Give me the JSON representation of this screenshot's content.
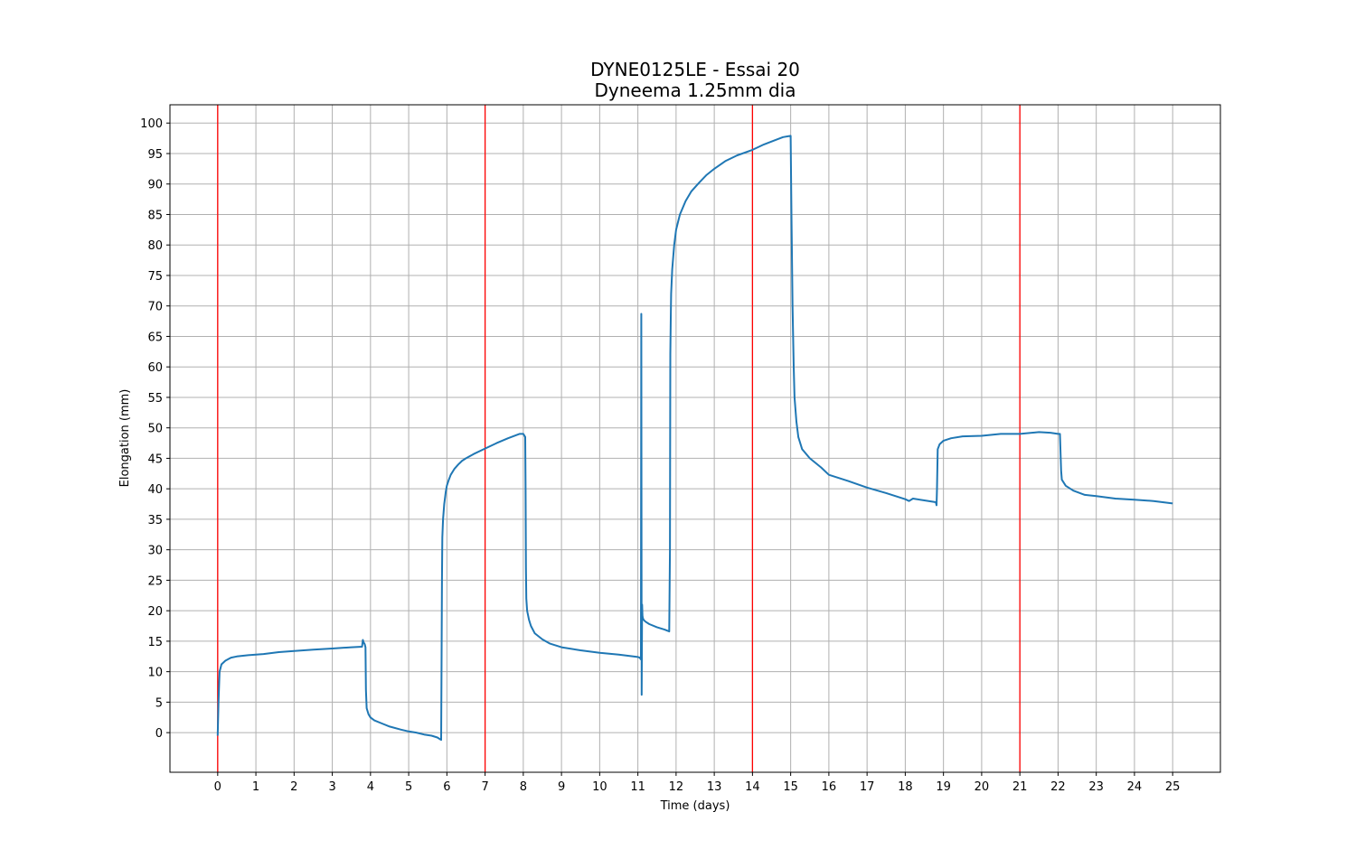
{
  "chart_data": {
    "type": "line",
    "title": "DYNE0125LE - Essai 20",
    "subtitle": "Dyneema 1.25mm dia",
    "xlabel": "Time (days)",
    "ylabel": "Elongation (mm)",
    "xlim": [
      -1.25,
      26.25
    ],
    "ylim": [
      -6.5,
      103
    ],
    "xticks": [
      0,
      1,
      2,
      3,
      4,
      5,
      6,
      7,
      8,
      9,
      10,
      11,
      12,
      13,
      14,
      15,
      16,
      17,
      18,
      19,
      20,
      21,
      22,
      23,
      24,
      25
    ],
    "yticks": [
      0,
      5,
      10,
      15,
      20,
      25,
      30,
      35,
      40,
      45,
      50,
      55,
      60,
      65,
      70,
      75,
      80,
      85,
      90,
      95,
      100
    ],
    "grid": true,
    "vlines": {
      "x": [
        0,
        7,
        14,
        21
      ],
      "color": "#ff0000"
    },
    "series": [
      {
        "name": "Elongation",
        "color": "#1f77b4",
        "x": [
          0,
          0.02,
          0.05,
          0.1,
          0.2,
          0.35,
          0.5,
          0.8,
          1.2,
          1.6,
          2.0,
          2.5,
          3.0,
          3.5,
          3.78,
          3.8,
          3.82,
          3.85,
          3.87,
          3.88,
          3.9,
          3.95,
          4.0,
          4.1,
          4.3,
          4.5,
          4.8,
          5.0,
          5.2,
          5.4,
          5.6,
          5.75,
          5.85,
          5.86,
          5.87,
          5.88,
          5.9,
          5.93,
          5.97,
          6.0,
          6.05,
          6.1,
          6.2,
          6.3,
          6.4,
          6.5,
          6.7,
          7.0,
          7.3,
          7.6,
          7.9,
          8.0,
          8.05,
          8.06,
          8.07,
          8.08,
          8.1,
          8.15,
          8.2,
          8.3,
          8.5,
          8.7,
          9.0,
          9.5,
          10.0,
          10.5,
          11.0,
          11.05,
          11.08,
          11.09,
          11.1,
          11.11,
          11.12,
          11.13,
          11.15,
          11.2,
          11.3,
          11.5,
          11.7,
          11.82,
          11.84,
          11.85,
          11.86,
          11.87,
          11.9,
          11.95,
          12.0,
          12.1,
          12.25,
          12.4,
          12.6,
          12.8,
          13.0,
          13.3,
          13.6,
          14.0,
          14.3,
          14.6,
          14.8,
          15.0,
          15.02,
          15.05,
          15.08,
          15.1,
          15.15,
          15.2,
          15.3,
          15.5,
          15.8,
          16.0,
          16.5,
          17.0,
          17.5,
          18.0,
          18.1,
          18.2,
          18.5,
          18.8,
          18.82,
          18.83,
          18.85,
          18.9,
          19.0,
          19.2,
          19.5,
          20.0,
          20.5,
          21.0,
          21.5,
          21.8,
          22.0,
          22.05,
          22.08,
          22.1,
          22.2,
          22.4,
          22.7,
          23.0,
          23.5,
          24.0,
          24.5,
          25.0
        ],
        "y": [
          -0.5,
          5,
          10,
          11.2,
          11.8,
          12.3,
          12.5,
          12.7,
          12.9,
          13.2,
          13.4,
          13.6,
          13.8,
          14.0,
          14.1,
          15.2,
          14.8,
          14.5,
          14.0,
          7.0,
          4.0,
          3.0,
          2.5,
          2.0,
          1.5,
          1.0,
          0.5,
          0.2,
          0.0,
          -0.3,
          -0.5,
          -0.8,
          -1.2,
          10,
          25,
          32,
          35,
          37.5,
          39.5,
          40.5,
          41.5,
          42.3,
          43.3,
          44.0,
          44.6,
          45.0,
          45.7,
          46.6,
          47.5,
          48.3,
          49.0,
          49.0,
          48.5,
          40,
          27,
          22,
          20,
          18.5,
          17.5,
          16.3,
          15.3,
          14.6,
          14.0,
          13.5,
          13.1,
          12.8,
          12.4,
          12.3,
          12.0,
          68.7,
          6.2,
          21,
          19.2,
          18.8,
          18.5,
          18.2,
          17.8,
          17.3,
          16.9,
          16.6,
          30,
          62,
          68,
          72,
          76,
          80,
          82.5,
          85,
          87.2,
          88.8,
          90.2,
          91.5,
          92.5,
          93.8,
          94.7,
          95.6,
          96.5,
          97.2,
          97.7,
          97.9,
          85,
          70,
          60,
          55,
          51,
          48.5,
          46.5,
          45,
          43.5,
          42.3,
          41.3,
          40.2,
          39.3,
          38.3,
          38.0,
          38.4,
          38.1,
          37.8,
          37.3,
          40,
          46.5,
          47.3,
          47.9,
          48.3,
          48.6,
          48.7,
          49.0,
          49.0,
          49.3,
          49.2,
          49.0,
          49.0,
          43,
          41.5,
          40.5,
          39.7,
          39.0,
          38.8,
          38.4,
          38.2,
          38.0,
          37.6
        ]
      }
    ]
  }
}
